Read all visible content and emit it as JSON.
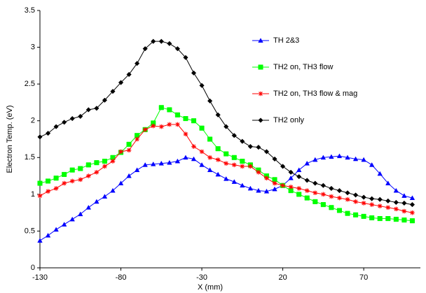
{
  "chart_data": {
    "type": "line",
    "x_label": "X (mm)",
    "y_label": "Electron Temp. (eV)",
    "x": [
      -130,
      -125,
      -120,
      -115,
      -110,
      -105,
      -100,
      -95,
      -90,
      -85,
      -80,
      -75,
      -70,
      -65,
      -60,
      -55,
      -50,
      -45,
      -40,
      -35,
      -30,
      -25,
      -20,
      -15,
      -10,
      -5,
      0,
      5,
      10,
      15,
      20,
      25,
      30,
      35,
      40,
      45,
      50,
      55,
      60,
      65,
      70,
      75,
      80,
      85,
      90,
      95,
      100
    ],
    "xlim": [
      -130,
      105
    ],
    "xticks": [
      -130,
      -80,
      -30,
      20,
      70
    ],
    "ylim": [
      0,
      3.5
    ],
    "yticks": [
      0,
      0.5,
      1,
      1.5,
      2,
      2.5,
      3,
      3.5
    ],
    "grid": false,
    "legend": "upper right",
    "series": [
      {
        "name": "TH 2&3",
        "color": "#0000ff",
        "marker": "triangle",
        "values": [
          0.37,
          0.44,
          0.52,
          0.59,
          0.66,
          0.73,
          0.82,
          0.9,
          0.97,
          1.05,
          1.15,
          1.25,
          1.33,
          1.4,
          1.41,
          1.42,
          1.43,
          1.45,
          1.5,
          1.48,
          1.4,
          1.33,
          1.27,
          1.21,
          1.17,
          1.12,
          1.08,
          1.05,
          1.04,
          1.07,
          1.12,
          1.22,
          1.33,
          1.42,
          1.47,
          1.5,
          1.51,
          1.52,
          1.5,
          1.48,
          1.47,
          1.4,
          1.28,
          1.15,
          1.05,
          0.98,
          0.95
        ]
      },
      {
        "name": "TH2 on, TH3 flow",
        "color": "#00ff00",
        "marker": "square",
        "values": [
          1.15,
          1.18,
          1.22,
          1.27,
          1.33,
          1.35,
          1.4,
          1.43,
          1.45,
          1.5,
          1.57,
          1.68,
          1.8,
          1.88,
          1.97,
          2.18,
          2.15,
          2.08,
          2.03,
          2.0,
          1.9,
          1.75,
          1.62,
          1.55,
          1.5,
          1.45,
          1.4,
          1.33,
          1.25,
          1.2,
          1.12,
          1.05,
          1.0,
          0.95,
          0.9,
          0.86,
          0.82,
          0.78,
          0.74,
          0.72,
          0.7,
          0.68,
          0.67,
          0.67,
          0.66,
          0.65,
          0.64
        ]
      },
      {
        "name": "TH2 on, TH3 flow & mag",
        "color": "#ff0000",
        "marker": "asterisk",
        "values": [
          0.98,
          1.04,
          1.08,
          1.15,
          1.18,
          1.2,
          1.25,
          1.3,
          1.38,
          1.45,
          1.58,
          1.6,
          1.75,
          1.88,
          1.93,
          1.92,
          1.95,
          1.95,
          1.82,
          1.65,
          1.58,
          1.5,
          1.47,
          1.42,
          1.4,
          1.38,
          1.38,
          1.3,
          1.22,
          1.15,
          1.12,
          1.1,
          1.08,
          1.05,
          1.02,
          1.0,
          0.97,
          0.95,
          0.93,
          0.9,
          0.88,
          0.86,
          0.84,
          0.82,
          0.8,
          0.77,
          0.75
        ]
      },
      {
        "name": "TH2 only",
        "color": "#000000",
        "marker": "diamond",
        "values": [
          1.78,
          1.83,
          1.92,
          1.98,
          2.03,
          2.06,
          2.15,
          2.17,
          2.28,
          2.4,
          2.52,
          2.63,
          2.78,
          2.98,
          3.08,
          3.08,
          3.05,
          2.98,
          2.86,
          2.65,
          2.48,
          2.27,
          2.08,
          1.92,
          1.8,
          1.72,
          1.65,
          1.64,
          1.58,
          1.48,
          1.38,
          1.3,
          1.24,
          1.19,
          1.15,
          1.12,
          1.08,
          1.05,
          1.02,
          0.99,
          0.96,
          0.94,
          0.93,
          0.91,
          0.89,
          0.88,
          0.86
        ]
      }
    ]
  }
}
